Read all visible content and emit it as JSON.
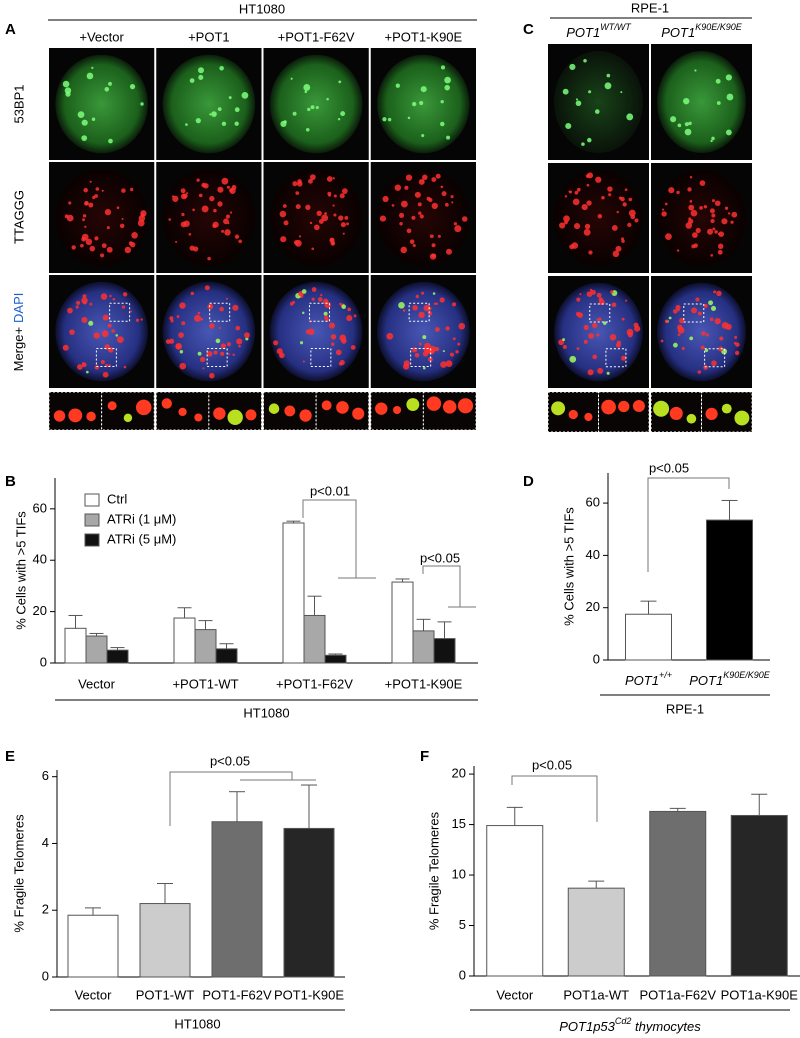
{
  "panel_letters": [
    "A",
    "B",
    "C",
    "D",
    "E",
    "F"
  ],
  "image_panels": [
    {
      "title": "HT1080",
      "columns": [
        "+Vector",
        "+POT1",
        "+POT1-F62V",
        "+POT1-K90E"
      ],
      "row_labels": [
        "53BP1",
        "TTAGGG",
        "Merge+",
        "DAPI"
      ]
    },
    {
      "title": "RPE-1",
      "columns": [
        {
          "text": "POT1",
          "sup": "WT/WT"
        },
        {
          "text": "POT1",
          "sup": "K90E/K90E"
        }
      ]
    }
  ],
  "chart_data": [
    {
      "type": "bar",
      "ylabel": "% Cells with >5 TIFs",
      "xlabel": "HT1080",
      "categories": [
        "Vector",
        "+POT1-WT",
        "+POT1-F62V",
        "+POT1-K90E"
      ],
      "series": [
        {
          "name": "Ctrl",
          "color": "#ffffff",
          "values": [
            13.5,
            17.5,
            54.5,
            31.5
          ],
          "errors": [
            5,
            4,
            0.7,
            1.2
          ]
        },
        {
          "name": "ATRi (1 μM)",
          "color": "#a8a8a8",
          "values": [
            10.5,
            13,
            18.5,
            12.5
          ],
          "errors": [
            1,
            3.5,
            7.5,
            4.5
          ]
        },
        {
          "name": "ATRi (5 μM)",
          "color": "#111111",
          "values": [
            5,
            5.5,
            3,
            9.5
          ],
          "errors": [
            1,
            2,
            0.5,
            6.5
          ]
        }
      ],
      "ylim": [
        0,
        72
      ],
      "yticks": [
        0,
        20,
        40,
        60
      ],
      "legend": "upper left",
      "annotations": [
        "p<0.01",
        "p<0.05"
      ]
    },
    {
      "type": "bar",
      "ylabel": "% Cells with >5 TIFs",
      "xlabel": "RPE-1",
      "categories": [
        {
          "text": "POT1",
          "sup": "+/+"
        },
        {
          "text": "POT1",
          "sup": "K90E/K90E"
        }
      ],
      "values": [
        17.5,
        53.5
      ],
      "errors": [
        5,
        7.5
      ],
      "colors": [
        "#ffffff",
        "#000000"
      ],
      "ylim": [
        0,
        71.5
      ],
      "yticks": [
        0,
        20,
        40,
        60
      ],
      "annotations": [
        "p<0.05"
      ]
    },
    {
      "type": "bar",
      "ylabel": "% Fragile Telomeres",
      "xlabel": "HT1080",
      "categories": [
        "Vector",
        "POT1-WT",
        "POT1-F62V",
        "POT1-K90E"
      ],
      "values": [
        1.85,
        2.2,
        4.65,
        4.45
      ],
      "errors": [
        0.22,
        0.6,
        0.9,
        1.3
      ],
      "colors": [
        "#ffffff",
        "#cccccc",
        "#6e6e6e",
        "#262626"
      ],
      "ylim": [
        0,
        6.2
      ],
      "yticks": [
        0,
        2,
        4,
        6
      ],
      "annotations": [
        "p<0.05"
      ]
    },
    {
      "type": "bar",
      "ylabel": "% Fragile Telomeres",
      "xlabel": {
        "text": "POT1p53",
        "sup": "Cd2",
        "rest": " thymocytes"
      },
      "categories": [
        "Vector",
        "POT1a-WT",
        "POT1a-F62V",
        "POT1a-K90E"
      ],
      "values": [
        14.9,
        8.7,
        16.3,
        15.9
      ],
      "errors": [
        1.8,
        0.7,
        0.3,
        2.1
      ],
      "colors": [
        "#ffffff",
        "#cccccc",
        "#6e6e6e",
        "#262626"
      ],
      "ylim": [
        0,
        20.8
      ],
      "yticks": [
        0,
        5,
        10,
        15,
        20
      ],
      "annotations": [
        "p<0.05"
      ]
    }
  ]
}
